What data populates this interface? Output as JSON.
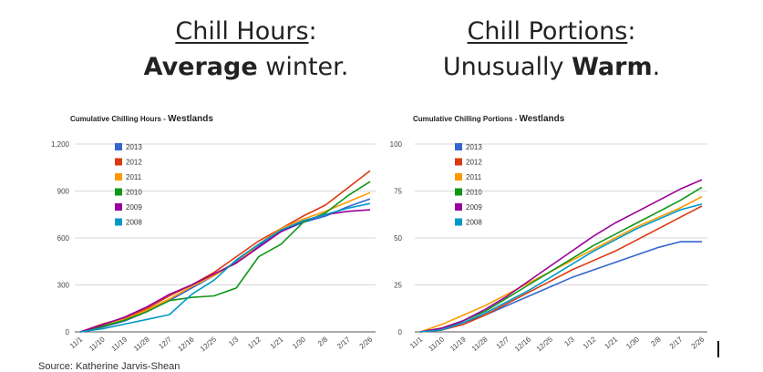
{
  "slide": {
    "left_heading": {
      "line1_underlined": "Chill Hours",
      "line1_rest": ":",
      "line2_bold": "Average",
      "line2_rest": " winter."
    },
    "right_heading": {
      "line1_underlined": "Chill Portions",
      "line1_rest": ":",
      "line2_pre": "Unusually ",
      "line2_bold": "Warm",
      "line2_rest": "."
    },
    "footer": "Source: Katherine Jarvis-Shean"
  },
  "chart_data": [
    {
      "type": "line",
      "title_prefix": "Cumulative Chilling Hours - ",
      "title_bold": "Westlands",
      "categories": [
        "11/1",
        "11/10",
        "11/19",
        "11/28",
        "12/7",
        "12/16",
        "12/25",
        "1/3",
        "1/12",
        "1/21",
        "1/30",
        "2/8",
        "2/17",
        "2/26"
      ],
      "ylim": [
        0,
        1200
      ],
      "yticks": [
        "0",
        "300",
        "600",
        "900",
        "1,200"
      ],
      "ytick_values": [
        0,
        300,
        600,
        900,
        1200
      ],
      "grid": true,
      "legend_position": "top-left",
      "series": [
        {
          "name": "2013",
          "color": "#3366cc",
          "values": [
            0,
            30,
            70,
            130,
            200,
            280,
            360,
            450,
            550,
            640,
            700,
            740,
            800,
            850
          ]
        },
        {
          "name": "2012",
          "color": "#dc3912",
          "values": [
            0,
            50,
            90,
            150,
            230,
            300,
            380,
            480,
            580,
            660,
            740,
            810,
            920,
            1030
          ]
        },
        {
          "name": "2011",
          "color": "#ff9900",
          "values": [
            0,
            40,
            80,
            140,
            210,
            290,
            360,
            440,
            560,
            660,
            720,
            770,
            830,
            890
          ]
        },
        {
          "name": "2010",
          "color": "#109618",
          "values": [
            0,
            35,
            75,
            130,
            200,
            220,
            230,
            280,
            480,
            560,
            700,
            760,
            870,
            960
          ]
        },
        {
          "name": "2009",
          "color": "#990099",
          "values": [
            0,
            45,
            95,
            160,
            240,
            300,
            370,
            440,
            540,
            640,
            710,
            750,
            770,
            780
          ]
        },
        {
          "name": "2008",
          "color": "#0099c6",
          "values": [
            0,
            20,
            50,
            80,
            110,
            240,
            330,
            460,
            560,
            650,
            710,
            750,
            790,
            820
          ]
        }
      ]
    },
    {
      "type": "line",
      "title_prefix": "Cumulative Chilling Portions - ",
      "title_bold": "Westlands",
      "categories": [
        "11/1",
        "11/10",
        "11/19",
        "11/28",
        "12/7",
        "12/16",
        "12/25",
        "1/3",
        "1/12",
        "1/21",
        "1/30",
        "2/8",
        "2/17",
        "2/26"
      ],
      "ylim": [
        0,
        100
      ],
      "yticks": [
        "0",
        "25",
        "50",
        "75",
        "100"
      ],
      "ytick_values": [
        0,
        25,
        50,
        75,
        100
      ],
      "grid": true,
      "legend_position": "top-left",
      "series": [
        {
          "name": "2013",
          "color": "#3366cc",
          "values": [
            0,
            2,
            5,
            9,
            14,
            19,
            24,
            29,
            33,
            37,
            41,
            45,
            48,
            48
          ]
        },
        {
          "name": "2012",
          "color": "#dc3912",
          "values": [
            0,
            1,
            4,
            9,
            15,
            21,
            27,
            33,
            38,
            43,
            49,
            55,
            61,
            67
          ]
        },
        {
          "name": "2011",
          "color": "#ff9900",
          "values": [
            0,
            4,
            9,
            14,
            20,
            26,
            32,
            38,
            44,
            50,
            56,
            61,
            66,
            72
          ]
        },
        {
          "name": "2010",
          "color": "#109618",
          "values": [
            0,
            2,
            6,
            11,
            18,
            25,
            32,
            39,
            46,
            52,
            58,
            64,
            70,
            77
          ]
        },
        {
          "name": "2009",
          "color": "#990099",
          "values": [
            0,
            2,
            6,
            12,
            19,
            27,
            35,
            43,
            51,
            58,
            64,
            70,
            76,
            81
          ]
        },
        {
          "name": "2008",
          "color": "#0099c6",
          "values": [
            0,
            1,
            5,
            10,
            16,
            22,
            29,
            36,
            43,
            49,
            55,
            60,
            65,
            68
          ]
        }
      ]
    }
  ]
}
